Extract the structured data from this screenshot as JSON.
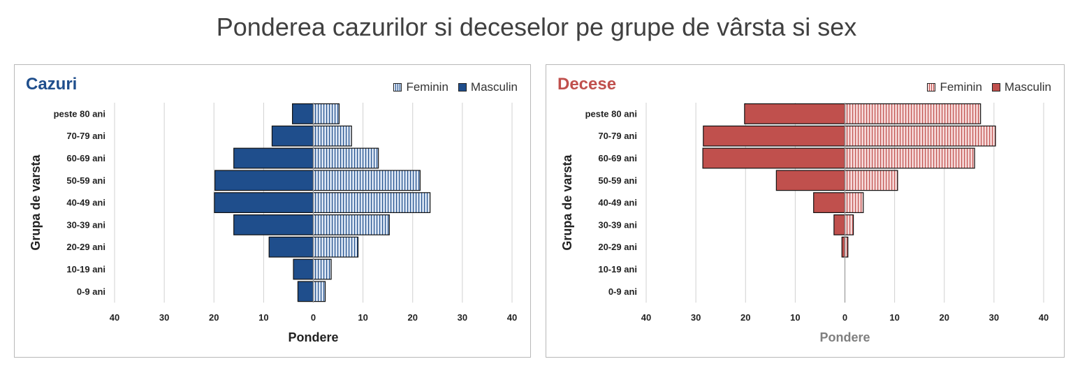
{
  "page_title": "Ponderea cazurilor si deceselor pe grupe de vârsta si sex",
  "chart_data": [
    {
      "type": "bar",
      "title": "Cazuri",
      "xlabel": "Pondere",
      "ylabel": "Grupa de varsta",
      "orientation": "horizontal-population-pyramid",
      "categories": [
        "peste 80 ani",
        "70-79 ani",
        "60-69 ani",
        "50-59 ani",
        "40-49 ani",
        "30-39 ani",
        "20-29 ani",
        "10-19 ani",
        "0-9 ani"
      ],
      "series": [
        {
          "name": "Feminin",
          "values": [
            5.2,
            7.7,
            13.1,
            21.5,
            23.5,
            15.3,
            9.0,
            3.6,
            2.4
          ]
        },
        {
          "name": "Masculin",
          "values": [
            4.2,
            8.3,
            16.0,
            19.8,
            19.9,
            16.0,
            8.9,
            4.0,
            3.1
          ]
        }
      ],
      "xticks": [
        "40",
        "30",
        "20",
        "10",
        "0",
        "10",
        "20",
        "30",
        "40"
      ],
      "xlim": [
        -40,
        40
      ],
      "grid": true,
      "legend": "top-right",
      "colors": {
        "feminin_fill": "#dce6f4",
        "feminin_stripe": "#1f4e8c",
        "masculin": "#1f4e8c",
        "title": "#1f4e8c",
        "xlabel": "#222222"
      }
    },
    {
      "type": "bar",
      "title": "Decese",
      "xlabel": "Pondere",
      "ylabel": "Grupa de varsta",
      "orientation": "horizontal-population-pyramid",
      "categories": [
        "peste 80 ani",
        "70-79 ani",
        "60-69 ani",
        "50-59 ani",
        "40-49 ani",
        "30-39 ani",
        "20-29 ani",
        "10-19 ani",
        "0-9 ani"
      ],
      "series": [
        {
          "name": "Feminin",
          "values": [
            27.3,
            30.3,
            26.1,
            10.6,
            3.7,
            1.7,
            0.6,
            0,
            0
          ]
        },
        {
          "name": "Masculin",
          "values": [
            20.2,
            28.5,
            28.6,
            13.8,
            6.3,
            2.2,
            0.6,
            0,
            0
          ]
        }
      ],
      "xticks": [
        "40",
        "30",
        "20",
        "10",
        "0",
        "10",
        "20",
        "30",
        "40"
      ],
      "xlim": [
        -40,
        40
      ],
      "grid": true,
      "legend": "top-right",
      "colors": {
        "feminin_fill": "#f6d9d9",
        "feminin_stripe": "#c0504d",
        "masculin": "#c0504d",
        "title": "#c0504d",
        "xlabel": "#7f7f7f"
      }
    }
  ]
}
